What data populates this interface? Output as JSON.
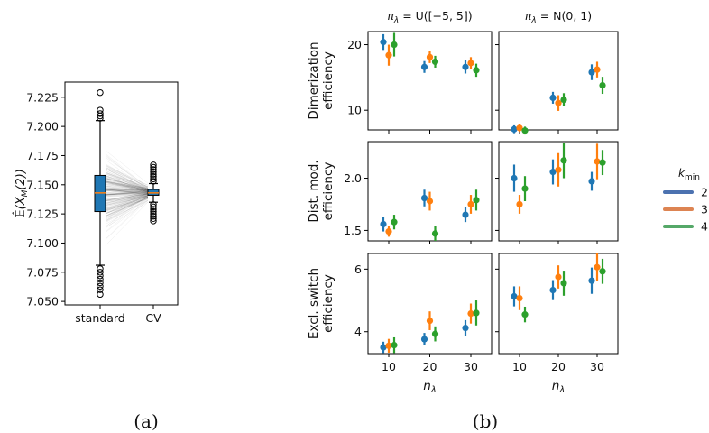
{
  "figure": {
    "caption_a": "(a)",
    "caption_b": "(b)"
  },
  "chart_data": [
    {
      "type": "box",
      "panel": "a",
      "ylabel": "𝔼̂(X_M(2))",
      "ylabel_main": "𝔼̂(X",
      "ylabel_sub": "M",
      "ylabel_tail": "(2))",
      "categories": [
        "standard",
        "CV"
      ],
      "ylim": [
        7.047,
        7.238
      ],
      "yticks": [
        "7.050",
        "7.075",
        "7.100",
        "7.125",
        "7.150",
        "7.175",
        "7.200",
        "7.225"
      ],
      "ytick_values": [
        7.05,
        7.075,
        7.1,
        7.125,
        7.15,
        7.175,
        7.2,
        7.225
      ],
      "boxes": [
        {
          "name": "standard",
          "q1": 7.127,
          "median": 7.143,
          "q3": 7.158,
          "whisker_low": 7.081,
          "whisker_high": 7.205,
          "fliers": [
            7.229,
            7.214,
            7.211,
            7.209,
            7.207,
            7.078,
            7.075,
            7.072,
            7.069,
            7.066,
            7.063,
            7.06,
            7.056
          ],
          "color": "#1f77b4"
        },
        {
          "name": "CV",
          "q1": 7.141,
          "median": 7.143,
          "q3": 7.146,
          "whisker_low": 7.135,
          "whisker_high": 7.151,
          "fliers": [
            7.167,
            7.165,
            7.163,
            7.161,
            7.159,
            7.157,
            7.155,
            7.153,
            7.133,
            7.131,
            7.129,
            7.127,
            7.125,
            7.123,
            7.121,
            7.119
          ],
          "color": "#1f77b4"
        }
      ],
      "median_color": "#ff7f0e",
      "paired_lines": true
    },
    {
      "type": "scatter",
      "panel": "b",
      "xlabel": "n_λ",
      "xlabel_main": "n",
      "xlabel_sub": "λ",
      "x": [
        10,
        20,
        30
      ],
      "xticks": [
        "10",
        "20",
        "30"
      ],
      "column_titles": [
        "π_λ = U([−5, 5])",
        "π_λ = N(0, 1)"
      ],
      "column_title_parts": [
        {
          "main": "π",
          "sub": "λ",
          "rest": " = U([−5, 5])"
        },
        {
          "main": "π",
          "sub": "λ",
          "rest": " = N(0, 1)"
        }
      ],
      "legend": {
        "title": "k_min",
        "title_main": "k",
        "title_sub": "min",
        "placement": "right",
        "entries": [
          {
            "label": "2",
            "color": "#4c72b0"
          },
          {
            "label": "3",
            "color": "#dd8452"
          },
          {
            "label": "4",
            "color": "#55a868"
          }
        ]
      },
      "series_colors": [
        "#1f77b4",
        "#ff7f0e",
        "#2ca02c"
      ],
      "rows": [
        {
          "ylabel_line1": "Dimerization",
          "ylabel_line2": "efficiency",
          "ylim": [
            7,
            22
          ],
          "yticks": [
            "10",
            "20"
          ],
          "ytick_values": [
            10,
            20
          ],
          "panels": [
            {
              "series": [
                {
                  "k": "2",
                  "y": [
                    20.4,
                    16.6,
                    16.6
                  ],
                  "err": [
                    1.2,
                    0.9,
                    1.0
                  ]
                },
                {
                  "k": "3",
                  "y": [
                    18.4,
                    18.1,
                    17.2
                  ],
                  "err": [
                    1.6,
                    0.9,
                    0.9
                  ]
                },
                {
                  "k": "4",
                  "y": [
                    20.0,
                    17.4,
                    16.1
                  ],
                  "err": [
                    1.8,
                    0.9,
                    1.0
                  ]
                }
              ]
            },
            {
              "series": [
                {
                  "k": "2",
                  "y": [
                    7.1,
                    11.9,
                    15.8
                  ],
                  "err": [
                    0.6,
                    0.9,
                    1.2
                  ]
                },
                {
                  "k": "3",
                  "y": [
                    7.3,
                    11.1,
                    16.2
                  ],
                  "err": [
                    0.6,
                    1.2,
                    1.2
                  ]
                },
                {
                  "k": "4",
                  "y": [
                    6.9,
                    11.6,
                    13.8
                  ],
                  "err": [
                    0.6,
                    1.0,
                    1.3
                  ]
                }
              ]
            }
          ]
        },
        {
          "ylabel_line1": "Dist. mod.",
          "ylabel_line2": "efficiency",
          "ylim": [
            1.4,
            2.35
          ],
          "yticks": [
            "1.5",
            "2.0"
          ],
          "ytick_values": [
            1.5,
            2.0
          ],
          "panels": [
            {
              "series": [
                {
                  "k": "2",
                  "y": [
                    1.56,
                    1.81,
                    1.65
                  ],
                  "err": [
                    0.07,
                    0.08,
                    0.07
                  ]
                },
                {
                  "k": "3",
                  "y": [
                    1.49,
                    1.78,
                    1.75
                  ],
                  "err": [
                    0.05,
                    0.09,
                    0.09
                  ]
                },
                {
                  "k": "4",
                  "y": [
                    1.58,
                    1.47,
                    1.79
                  ],
                  "err": [
                    0.07,
                    0.07,
                    0.1
                  ]
                }
              ]
            },
            {
              "series": [
                {
                  "k": "2",
                  "y": [
                    2.0,
                    2.06,
                    1.97
                  ],
                  "err": [
                    0.13,
                    0.12,
                    0.09
                  ]
                },
                {
                  "k": "3",
                  "y": [
                    1.75,
                    2.08,
                    2.16
                  ],
                  "err": [
                    0.09,
                    0.16,
                    0.17
                  ]
                },
                {
                  "k": "4",
                  "y": [
                    1.9,
                    2.17,
                    2.15
                  ],
                  "err": [
                    0.12,
                    0.17,
                    0.12
                  ]
                }
              ]
            }
          ]
        },
        {
          "ylabel_line1": "Excl. switch",
          "ylabel_line2": "efficiency",
          "ylim": [
            3.3,
            6.5
          ],
          "yticks": [
            "4",
            "6"
          ],
          "ytick_values": [
            4,
            6
          ],
          "panels": [
            {
              "series": [
                {
                  "k": "2",
                  "y": [
                    3.5,
                    3.76,
                    4.12
                  ],
                  "err": [
                    0.18,
                    0.2,
                    0.25
                  ]
                },
                {
                  "k": "3",
                  "y": [
                    3.55,
                    4.35,
                    4.58
                  ],
                  "err": [
                    0.22,
                    0.3,
                    0.32
                  ]
                },
                {
                  "k": "4",
                  "y": [
                    3.57,
                    3.93,
                    4.6
                  ],
                  "err": [
                    0.25,
                    0.24,
                    0.4
                  ]
                }
              ]
            },
            {
              "series": [
                {
                  "k": "2",
                  "y": [
                    5.13,
                    5.33,
                    5.63
                  ],
                  "err": [
                    0.32,
                    0.32,
                    0.42
                  ]
                },
                {
                  "k": "3",
                  "y": [
                    5.07,
                    5.75,
                    6.06
                  ],
                  "err": [
                    0.38,
                    0.37,
                    0.45
                  ]
                },
                {
                  "k": "4",
                  "y": [
                    4.55,
                    5.55,
                    5.93
                  ],
                  "err": [
                    0.25,
                    0.4,
                    0.4
                  ]
                }
              ]
            }
          ]
        }
      ]
    }
  ]
}
